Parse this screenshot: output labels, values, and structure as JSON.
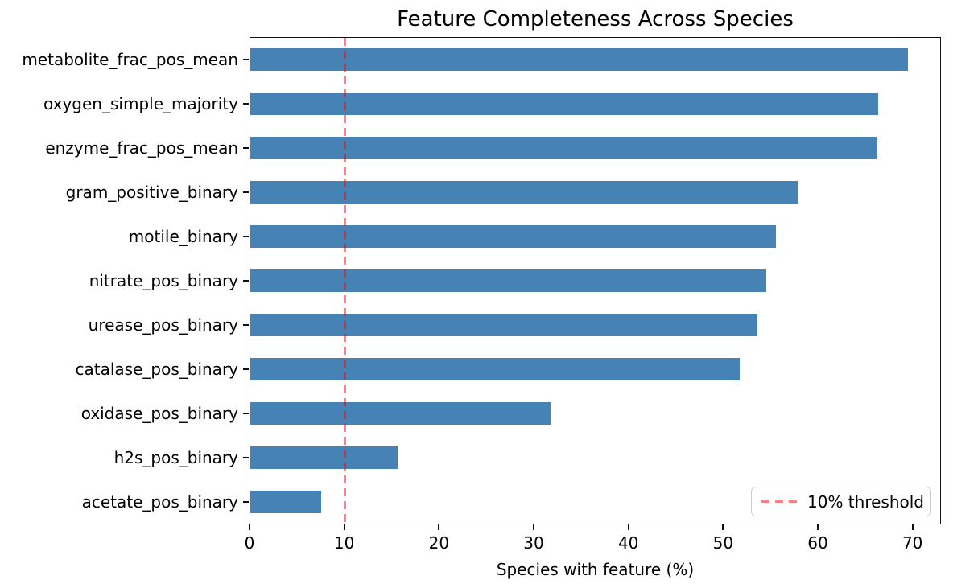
{
  "chart_data": {
    "type": "bar",
    "orientation": "horizontal",
    "title": "Feature Completeness Across Species",
    "xlabel": "Species with feature (%)",
    "ylabel": "",
    "categories": [
      "metabolite_frac_pos_mean",
      "oxygen_simple_majority",
      "enzyme_frac_pos_mean",
      "gram_positive_binary",
      "motile_binary",
      "nitrate_pos_binary",
      "urease_pos_binary",
      "catalase_pos_binary",
      "oxidase_pos_binary",
      "h2s_pos_binary",
      "acetate_pos_binary"
    ],
    "values": [
      69.6,
      66.4,
      66.3,
      58.0,
      55.6,
      54.6,
      53.7,
      51.8,
      31.8,
      15.6,
      7.5
    ],
    "xlim": [
      0,
      73
    ],
    "xticks": [
      0,
      10,
      20,
      30,
      40,
      50,
      60,
      70
    ],
    "bar_color": "#4682b4",
    "bar_width_fraction": 0.5,
    "grid": false,
    "threshold": {
      "value": 10,
      "label": "10% threshold",
      "color": "rgba(255,0,0,0.5)",
      "line_style": "dashed"
    },
    "legend": {
      "position": "lower right",
      "entries": [
        {
          "label": "10% threshold",
          "color": "rgba(255,0,0,0.5)",
          "line_style": "dashed"
        }
      ]
    }
  }
}
